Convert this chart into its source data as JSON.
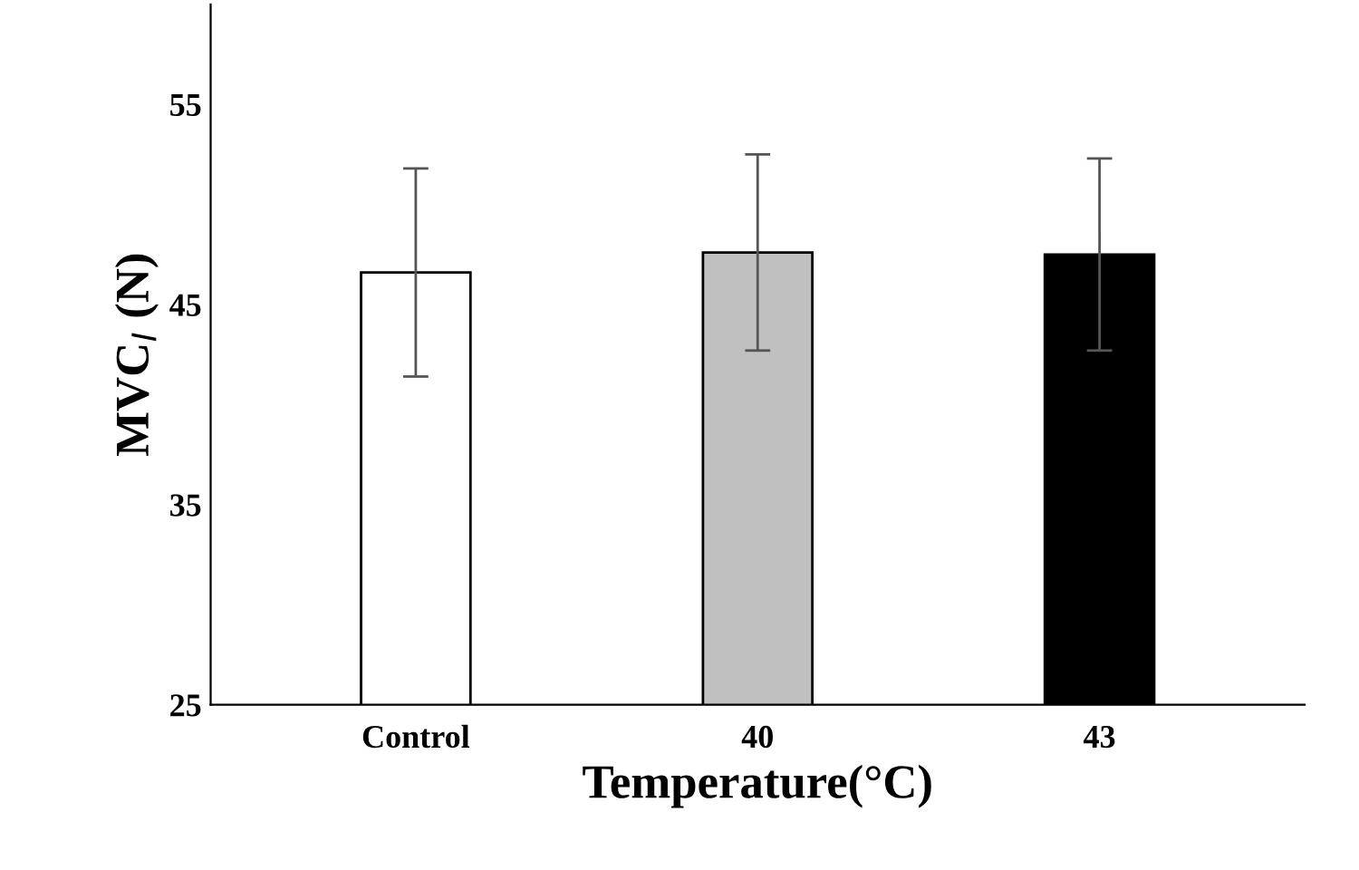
{
  "chart_data": {
    "type": "bar",
    "xlabel": "Temperature(°C)",
    "ylabel": "MVC$_{I}$ (N)",
    "categories": [
      "Control",
      "40",
      "43"
    ],
    "values": [
      46.6,
      47.6,
      47.5
    ],
    "colors": [
      "#ffffff",
      "#c0c0c0",
      "#000000"
    ],
    "errors": [
      5.2,
      4.9,
      4.8
    ],
    "ylim": [
      25,
      60
    ],
    "yticks": [
      25,
      35,
      45,
      55
    ],
    "grid": false,
    "legend": false
  }
}
